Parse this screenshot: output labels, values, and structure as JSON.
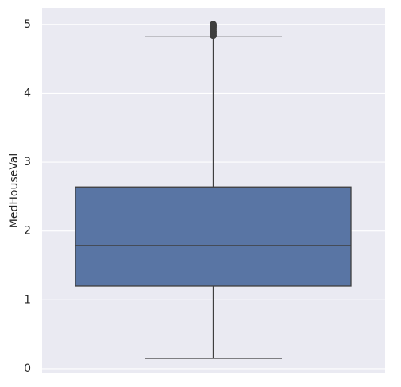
{
  "chart_data": {
    "type": "box",
    "y_label": "MedHouseVal",
    "whislo": 0.15,
    "q1": 1.2,
    "med": 1.79,
    "q3": 2.64,
    "whishi": 4.82,
    "fliers": [
      4.84,
      4.87,
      4.9,
      4.93,
      4.96,
      4.98,
      5.0
    ],
    "color": "#5975a4",
    "ylim": [
      -0.07,
      5.24
    ],
    "yticks": [
      0,
      1,
      2,
      3,
      4,
      5
    ],
    "grid": true
  }
}
